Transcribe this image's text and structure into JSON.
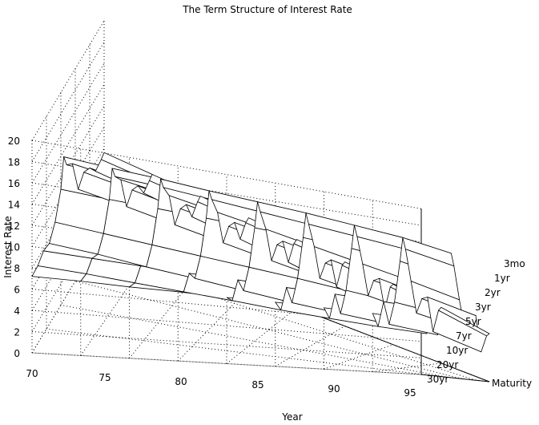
{
  "chart_data": {
    "type": "surface3d",
    "title": "The Term Structure of Interest Rate",
    "xlabel": "Year",
    "ylabel": "Maturity",
    "zlabel": "Interest Rate",
    "x_ticks": [
      70,
      75,
      80,
      85,
      90,
      95
    ],
    "y_ticks": [
      "3mo",
      "1yr",
      "2yr",
      "3yr",
      "5yr",
      "7yr",
      "10yr",
      "20yr",
      "30yr"
    ],
    "z_ticks": [
      0,
      2,
      4,
      6,
      8,
      10,
      12,
      14,
      16,
      18,
      20
    ],
    "xlim": [
      70,
      95
    ],
    "zlim": [
      0,
      20
    ],
    "grid": true,
    "surface": {
      "x": [
        70,
        72,
        74,
        76,
        78,
        80,
        81,
        82,
        84,
        86,
        88,
        90,
        92,
        94,
        95
      ],
      "y": [
        "3mo",
        "1yr",
        "2yr",
        "3yr",
        "5yr",
        "7yr",
        "10yr",
        "20yr",
        "30yr"
      ],
      "z": [
        [
          6.5,
          5.0,
          8.0,
          5.0,
          7.5,
          12.0,
          15.0,
          13.5,
          9.5,
          6.0,
          7.5,
          7.8,
          3.5,
          5.5,
          5.8
        ],
        [
          6.8,
          5.2,
          8.0,
          5.3,
          7.8,
          12.5,
          15.2,
          13.8,
          10.0,
          6.2,
          7.8,
          7.9,
          3.8,
          6.2,
          6.5
        ],
        [
          6.9,
          5.5,
          8.0,
          5.6,
          8.0,
          12.5,
          15.0,
          13.6,
          10.3,
          6.5,
          8.0,
          8.0,
          4.3,
          6.6,
          6.8
        ],
        [
          7.0,
          5.8,
          7.9,
          5.9,
          8.2,
          12.3,
          14.8,
          13.4,
          10.6,
          6.8,
          8.1,
          8.1,
          4.8,
          6.8,
          7.0
        ],
        [
          7.0,
          6.2,
          7.9,
          6.3,
          8.3,
          12.0,
          14.5,
          13.2,
          10.9,
          7.1,
          8.3,
          8.2,
          5.5,
          7.0,
          7.2
        ],
        [
          7.1,
          6.5,
          7.8,
          6.7,
          8.4,
          11.7,
          14.2,
          13.0,
          11.1,
          7.4,
          8.5,
          8.3,
          6.0,
          7.1,
          7.3
        ],
        [
          7.1,
          6.8,
          7.8,
          7.0,
          8.5,
          11.4,
          14.0,
          12.8,
          11.3,
          7.7,
          8.6,
          8.3,
          6.4,
          7.2,
          7.4
        ],
        [
          7.2,
          7.1,
          7.8,
          7.4,
          8.6,
          11.1,
          13.7,
          12.5,
          11.4,
          8.0,
          8.8,
          8.4,
          6.9,
          7.3,
          7.5
        ],
        [
          7.2,
          7.3,
          7.8,
          7.6,
          8.7,
          10.9,
          13.5,
          12.3,
          11.5,
          8.2,
          8.9,
          8.4,
          7.2,
          7.4,
          7.6
        ]
      ]
    }
  }
}
